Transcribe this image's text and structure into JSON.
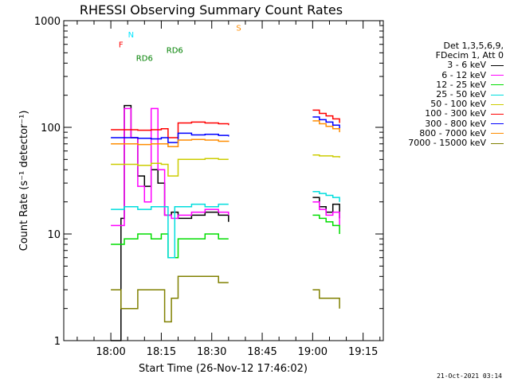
{
  "chart_data": {
    "type": "line",
    "title": "RHESSI Observing Summary Count Rates",
    "xlabel": "Start Time (26-Nov-12 17:46:02)",
    "ylabel": "Count Rate (s⁻¹ detector⁻¹)",
    "yscale": "log",
    "xlim_min": [
      -14,
      81
    ],
    "ylim": [
      1,
      1000
    ],
    "x_unit": "minutes from 18:00",
    "x_ticks": [
      {
        "t": 0,
        "label": "18:00"
      },
      {
        "t": 15,
        "label": "18:15"
      },
      {
        "t": 30,
        "label": "18:30"
      },
      {
        "t": 45,
        "label": "18:45"
      },
      {
        "t": 60,
        "label": "19:00"
      },
      {
        "t": 75,
        "label": "19:15"
      }
    ],
    "y_ticks": [
      {
        "v": 1,
        "label": "1"
      },
      {
        "v": 10,
        "label": "10"
      },
      {
        "v": 100,
        "label": "100"
      },
      {
        "v": 1000,
        "label": "1000"
      }
    ],
    "legend_header": [
      "Det 1,3,5,6,9,",
      "FDecim 1, Att 0"
    ],
    "series": [
      {
        "name": "3 - 6 keV",
        "color": "#000000",
        "points": [
          [
            0,
            1
          ],
          [
            3,
            14
          ],
          [
            4,
            160
          ],
          [
            6,
            80
          ],
          [
            8,
            35
          ],
          [
            10,
            28
          ],
          [
            12,
            40
          ],
          [
            14,
            30
          ],
          [
            16,
            15
          ],
          [
            18,
            16
          ],
          [
            20,
            14
          ],
          [
            24,
            15
          ],
          [
            28,
            16
          ],
          [
            32,
            15
          ],
          [
            35,
            13
          ],
          [
            60,
            22
          ],
          [
            62,
            18
          ],
          [
            64,
            16
          ],
          [
            66,
            19
          ],
          [
            68,
            14
          ]
        ]
      },
      {
        "name": "6 - 12 keV",
        "color": "#ff00ff",
        "points": [
          [
            0,
            12
          ],
          [
            3,
            12
          ],
          [
            4,
            150
          ],
          [
            6,
            80
          ],
          [
            8,
            28
          ],
          [
            10,
            20
          ],
          [
            12,
            150
          ],
          [
            14,
            40
          ],
          [
            16,
            15
          ],
          [
            18,
            14
          ],
          [
            20,
            15
          ],
          [
            24,
            16
          ],
          [
            28,
            17
          ],
          [
            32,
            16
          ],
          [
            35,
            15
          ],
          [
            60,
            20
          ],
          [
            62,
            17
          ],
          [
            64,
            15
          ],
          [
            66,
            16
          ],
          [
            68,
            12
          ]
        ]
      },
      {
        "name": "12 - 25 keV",
        "color": "#00dd00",
        "points": [
          [
            0,
            8
          ],
          [
            4,
            9
          ],
          [
            8,
            10
          ],
          [
            12,
            9
          ],
          [
            15,
            10
          ],
          [
            17,
            6
          ],
          [
            20,
            9
          ],
          [
            24,
            9
          ],
          [
            28,
            10
          ],
          [
            32,
            9
          ],
          [
            35,
            9
          ],
          [
            60,
            15
          ],
          [
            62,
            14
          ],
          [
            64,
            13
          ],
          [
            66,
            12
          ],
          [
            68,
            10
          ]
        ]
      },
      {
        "name": "25 - 50 keV",
        "color": "#00dddd",
        "points": [
          [
            0,
            17
          ],
          [
            4,
            18
          ],
          [
            8,
            17
          ],
          [
            12,
            18
          ],
          [
            15,
            18
          ],
          [
            17,
            6
          ],
          [
            19,
            18
          ],
          [
            24,
            19
          ],
          [
            28,
            18
          ],
          [
            32,
            19
          ],
          [
            35,
            19
          ],
          [
            60,
            25
          ],
          [
            62,
            24
          ],
          [
            64,
            23
          ],
          [
            66,
            22
          ],
          [
            68,
            20
          ]
        ]
      },
      {
        "name": "50 - 100 keV",
        "color": "#cccc00",
        "points": [
          [
            0,
            45
          ],
          [
            4,
            45
          ],
          [
            8,
            44
          ],
          [
            12,
            46
          ],
          [
            15,
            45
          ],
          [
            17,
            35
          ],
          [
            20,
            50
          ],
          [
            24,
            50
          ],
          [
            28,
            51
          ],
          [
            32,
            50
          ],
          [
            35,
            50
          ],
          [
            60,
            55
          ],
          [
            62,
            54
          ],
          [
            64,
            54
          ],
          [
            66,
            53
          ],
          [
            68,
            52
          ]
        ]
      },
      {
        "name": "100 - 300 keV",
        "color": "#ff0000",
        "points": [
          [
            0,
            95
          ],
          [
            4,
            95
          ],
          [
            8,
            94
          ],
          [
            12,
            95
          ],
          [
            15,
            97
          ],
          [
            17,
            80
          ],
          [
            20,
            110
          ],
          [
            24,
            112
          ],
          [
            28,
            110
          ],
          [
            32,
            108
          ],
          [
            35,
            105
          ],
          [
            60,
            145
          ],
          [
            62,
            135
          ],
          [
            64,
            128
          ],
          [
            66,
            120
          ],
          [
            68,
            110
          ]
        ]
      },
      {
        "name": "300 - 800 keV",
        "color": "#0000ff",
        "points": [
          [
            0,
            80
          ],
          [
            4,
            80
          ],
          [
            8,
            79
          ],
          [
            12,
            78
          ],
          [
            15,
            80
          ],
          [
            17,
            72
          ],
          [
            20,
            88
          ],
          [
            24,
            85
          ],
          [
            28,
            86
          ],
          [
            32,
            84
          ],
          [
            35,
            82
          ],
          [
            60,
            125
          ],
          [
            62,
            118
          ],
          [
            64,
            112
          ],
          [
            66,
            105
          ],
          [
            68,
            98
          ]
        ]
      },
      {
        "name": "800 - 7000 keV",
        "color": "#ff8c00",
        "points": [
          [
            0,
            70
          ],
          [
            4,
            70
          ],
          [
            8,
            69
          ],
          [
            12,
            70
          ],
          [
            15,
            70
          ],
          [
            17,
            66
          ],
          [
            20,
            76
          ],
          [
            24,
            77
          ],
          [
            28,
            76
          ],
          [
            32,
            74
          ],
          [
            35,
            73
          ],
          [
            60,
            115
          ],
          [
            62,
            108
          ],
          [
            64,
            102
          ],
          [
            66,
            97
          ],
          [
            68,
            90
          ]
        ]
      },
      {
        "name": "7000 - 15000 keV",
        "color": "#808000",
        "points": [
          [
            0,
            3
          ],
          [
            3,
            2
          ],
          [
            6,
            2
          ],
          [
            8,
            3
          ],
          [
            12,
            3
          ],
          [
            15,
            3
          ],
          [
            16,
            1.5
          ],
          [
            18,
            2.5
          ],
          [
            20,
            4
          ],
          [
            24,
            4
          ],
          [
            28,
            4
          ],
          [
            32,
            3.5
          ],
          [
            35,
            3.5
          ],
          [
            60,
            3
          ],
          [
            62,
            2.5
          ],
          [
            64,
            2.5
          ],
          [
            66,
            2.5
          ],
          [
            68,
            2
          ]
        ]
      }
    ],
    "annotations": [
      {
        "label": "N",
        "color": "#00e5ff",
        "text_t": 6,
        "text_v": 700
      },
      {
        "label": "F",
        "color": "#ff0000",
        "text_t": 3,
        "text_v": 560
      },
      {
        "label": "S",
        "color": "#ff8c00",
        "text_t": 38,
        "text_v": 810
      },
      {
        "label": "RD6",
        "color": "#008000",
        "text_t": 10,
        "text_v": 420
      },
      {
        "label": "RD6",
        "color": "#008000",
        "text_t": 19,
        "text_v": 500
      }
    ]
  },
  "footer_stamp": "21-Oct-2021 03:14"
}
